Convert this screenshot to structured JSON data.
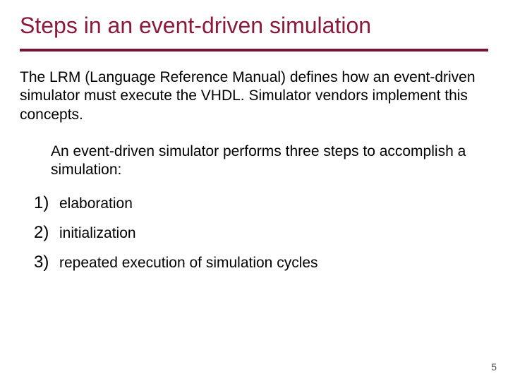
{
  "colors": {
    "title": "#8b1a3a",
    "rule": "#7a1435",
    "body": "#000000",
    "list_number": "#000000",
    "page_number": "#555555",
    "background": "#ffffff"
  },
  "title": "Steps in an event-driven simulation",
  "intro": "The LRM (Language Reference Manual) defines how an event-driven simulator must execute the VHDL. Simulator vendors implement this concepts.",
  "lead": "An event-driven simulator performs three steps to accomplish a simulation:",
  "items": [
    {
      "n": "1)",
      "text": "elaboration"
    },
    {
      "n": "2)",
      "text": "initialization"
    },
    {
      "n": "3)",
      "text": "repeated execution of simulation cycles"
    }
  ],
  "page_number": "5"
}
